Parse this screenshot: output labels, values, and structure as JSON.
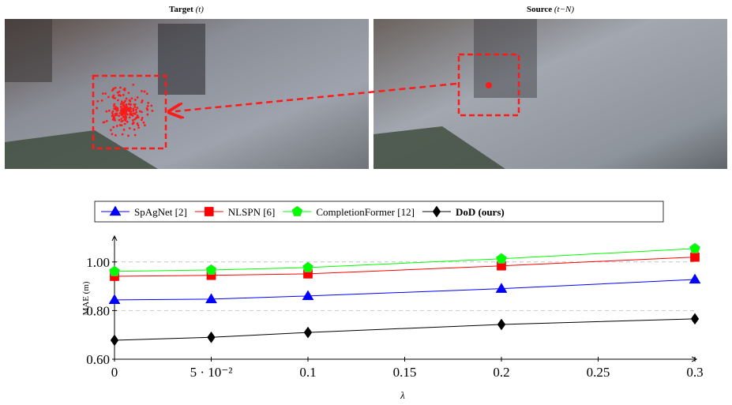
{
  "figure": {
    "panels": [
      {
        "label": "Target",
        "time": "(t)"
      },
      {
        "label": "Source",
        "time": "(t−N)"
      }
    ]
  },
  "chart_data": {
    "type": "line",
    "xlabel": "λ",
    "ylabel": "MAE (m)",
    "x": [
      0,
      0.05,
      0.1,
      0.2,
      0.3
    ],
    "xlim": [
      0,
      0.3
    ],
    "ylim": [
      0.6,
      1.1
    ],
    "xticks": [
      0,
      {
        "value": 0.05,
        "label": "5 · 10⁻²"
      },
      0.1,
      0.15,
      0.2,
      0.25,
      0.3
    ],
    "yticks": [
      {
        "value": 0.6,
        "label": "0.60"
      },
      {
        "value": 0.8,
        "label": "0.80"
      },
      {
        "value": 1.0,
        "label": "1.00"
      }
    ],
    "grid": true,
    "legend": "top",
    "series": [
      {
        "name": "SpAgNet [2]",
        "color": "#0000ff",
        "marker": "triangle",
        "values": [
          0.844,
          0.847,
          0.86,
          0.89,
          0.928
        ]
      },
      {
        "name": "NLSPN [6]",
        "color": "#ff0000",
        "marker": "square",
        "values": [
          0.941,
          0.945,
          0.951,
          0.984,
          1.02
        ]
      },
      {
        "name": "CompletionFormer [12]",
        "color": "#00ff00",
        "marker": "pentagon",
        "values": [
          0.961,
          0.967,
          0.977,
          1.013,
          1.055
        ]
      },
      {
        "name": "DoD (ours)",
        "color": "#000000",
        "marker": "diamond",
        "bold": true,
        "values": [
          0.678,
          0.69,
          0.71,
          0.743,
          0.766
        ]
      }
    ]
  }
}
